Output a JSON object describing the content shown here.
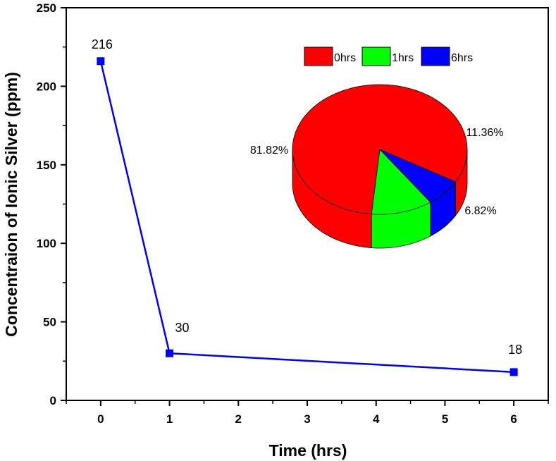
{
  "chart_data": [
    {
      "type": "line",
      "xlabel": "Time (hrs)",
      "ylabel": "Concentraion of Ionic Silver (ppm)",
      "categories": [
        "0",
        "1",
        "2",
        "3",
        "4",
        "5",
        "6"
      ],
      "x_ticks": [
        "0",
        "1",
        "2",
        "3",
        "4",
        "5",
        "6"
      ],
      "y_ticks": [
        "0",
        "50",
        "100",
        "150",
        "200",
        "250"
      ],
      "ylim": [
        0,
        250
      ],
      "xlim": [
        -0.5,
        6.5
      ],
      "grid": false,
      "colors": {
        "series": "#0000ff",
        "axis": "#000000"
      },
      "series": [
        {
          "points": [
            {
              "x": 0,
              "y": 216,
              "label": "216"
            },
            {
              "x": 1,
              "y": 30,
              "label": "30"
            },
            {
              "x": 6,
              "y": 18,
              "label": "18"
            }
          ]
        }
      ]
    },
    {
      "type": "pie",
      "legend_position": "top",
      "slices": [
        {
          "name": "0hrs",
          "value": 81.82,
          "label": "81.82%",
          "color": "#ff0000"
        },
        {
          "name": "1hrs",
          "value": 11.36,
          "label": "11.36%",
          "color": "#00ff00"
        },
        {
          "name": "6hrs",
          "value": 6.82,
          "label": "6.82%",
          "color": "#0000ff"
        }
      ]
    }
  ]
}
